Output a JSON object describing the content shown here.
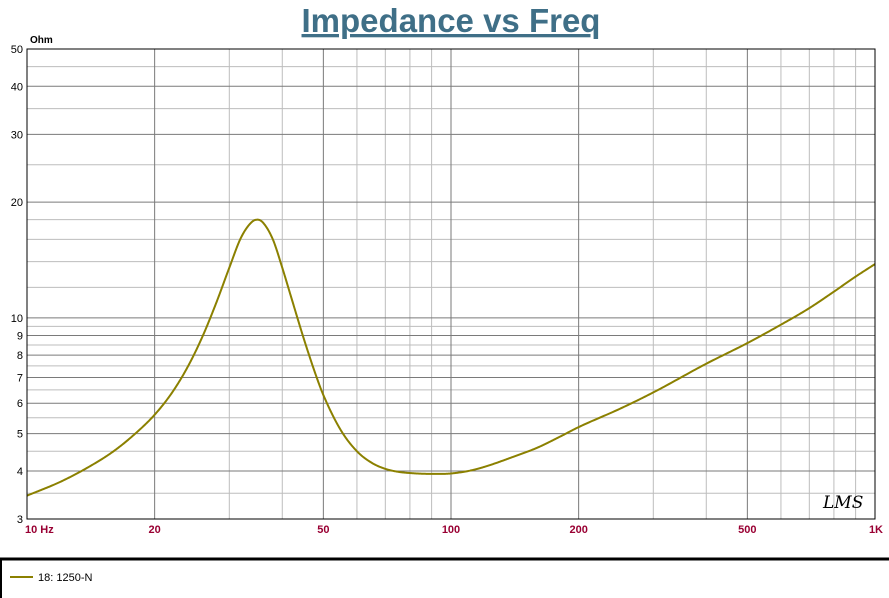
{
  "chart_data": {
    "type": "line",
    "title": "Impedance vs Freq",
    "ylabel": "Ohm",
    "xlabel": "",
    "x_scale": "log",
    "y_scale": "log",
    "xlim": [
      10,
      1000
    ],
    "ylim": [
      3,
      50
    ],
    "grid": true,
    "y_ticks": [
      {
        "value": 50,
        "label": "50"
      },
      {
        "value": 40,
        "label": "40"
      },
      {
        "value": 30,
        "label": "30"
      },
      {
        "value": 20,
        "label": "20"
      },
      {
        "value": 10,
        "label": "10"
      },
      {
        "value": 9,
        "label": "9"
      },
      {
        "value": 8,
        "label": "8"
      },
      {
        "value": 7,
        "label": "7"
      },
      {
        "value": 6,
        "label": "6"
      },
      {
        "value": 5,
        "label": "5"
      },
      {
        "value": 4,
        "label": "4"
      },
      {
        "value": 3,
        "label": "3"
      }
    ],
    "x_ticks": [
      {
        "value": 10,
        "label": "10  Hz"
      },
      {
        "value": 20,
        "label": "20"
      },
      {
        "value": 50,
        "label": "50"
      },
      {
        "value": 100,
        "label": "100"
      },
      {
        "value": 200,
        "label": "200"
      },
      {
        "value": 500,
        "label": "500"
      },
      {
        "value": 1000,
        "label": "1K"
      }
    ],
    "series": [
      {
        "name": "18: 1250-N",
        "color": "#8b8000",
        "x": [
          10,
          12,
          14,
          16,
          18,
          20,
          22,
          24,
          26,
          28,
          30,
          32,
          34,
          35,
          36,
          38,
          40,
          42,
          45,
          48,
          50,
          55,
          60,
          65,
          70,
          75,
          80,
          90,
          95,
          100,
          110,
          120,
          140,
          160,
          180,
          200,
          250,
          300,
          400,
          500,
          600,
          700,
          800,
          900,
          1000
        ],
        "y": [
          3.45,
          3.75,
          4.1,
          4.5,
          5.0,
          5.6,
          6.4,
          7.5,
          9.0,
          11.0,
          13.5,
          16.2,
          17.8,
          18.0,
          17.7,
          16.0,
          13.5,
          11.3,
          8.8,
          7.1,
          6.3,
          5.1,
          4.5,
          4.2,
          4.05,
          3.98,
          3.95,
          3.93,
          3.93,
          3.94,
          4.0,
          4.1,
          4.35,
          4.6,
          4.9,
          5.2,
          5.8,
          6.4,
          7.6,
          8.6,
          9.6,
          10.6,
          11.7,
          12.8,
          13.8
        ]
      }
    ]
  },
  "logo_text": "LMS"
}
